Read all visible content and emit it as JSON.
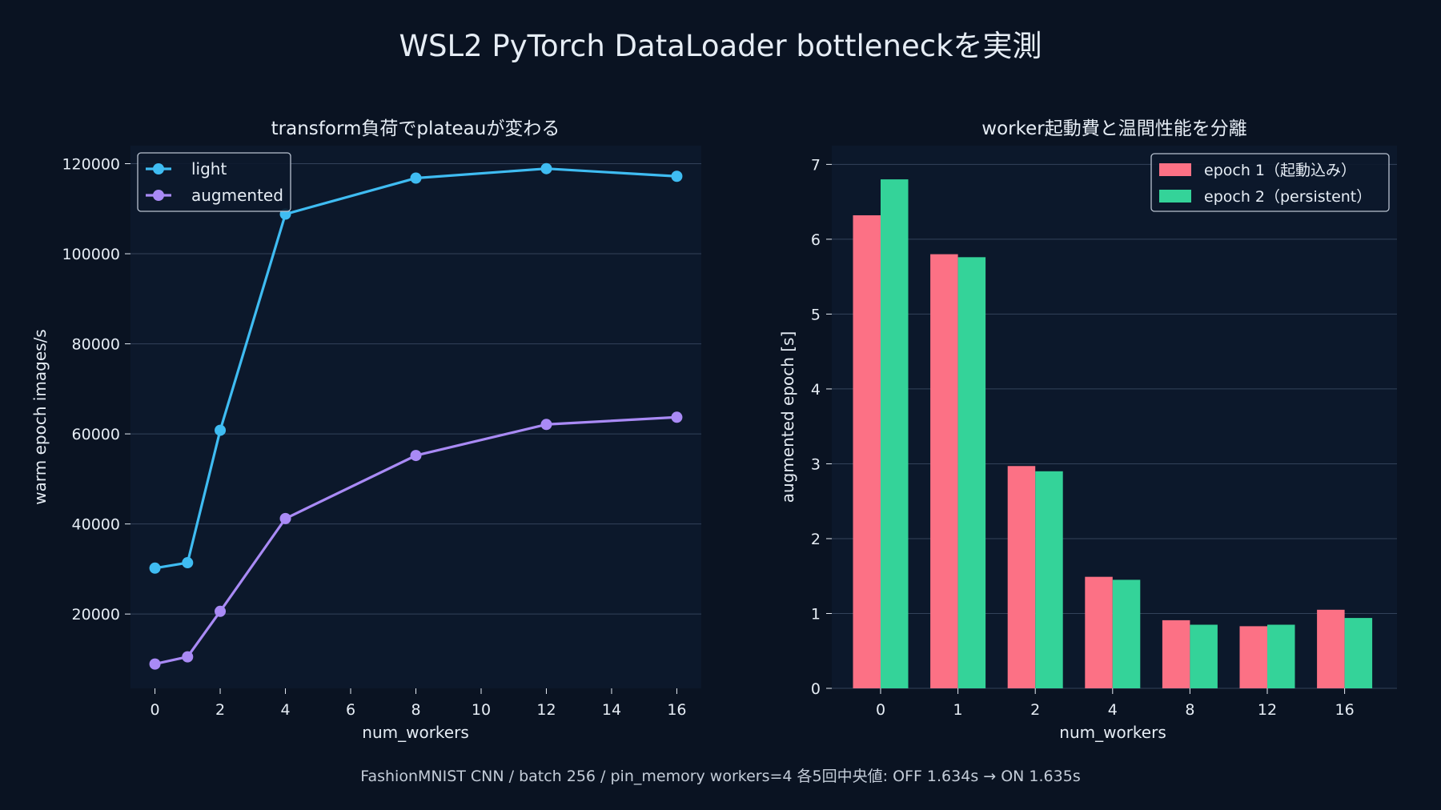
{
  "figure": {
    "title": "WSL2 PyTorch DataLoader bottleneckを実測",
    "footnote": "FashionMNIST CNN / batch 256 / pin_memory workers=4 各5回中央値: OFF 1.634s → ON 1.635s",
    "colors": {
      "background": "#0a1322",
      "panel": "#0c182b",
      "grid": "#33425a",
      "text": "#e6edf5"
    }
  },
  "chart_data": [
    {
      "type": "line",
      "title": "transform負荷でplateauが変わる",
      "xlabel": "num_workers",
      "ylabel": "warm epoch images/s",
      "xlim": [
        -0.75,
        16.75
      ],
      "ylim": [
        3500,
        124000
      ],
      "xticks": [
        0,
        2,
        4,
        6,
        8,
        10,
        12,
        14,
        16
      ],
      "yticks": [
        20000,
        40000,
        60000,
        80000,
        100000,
        120000
      ],
      "grid": "horizontal",
      "legend_position": "top-left",
      "x": [
        0,
        1,
        2,
        4,
        8,
        12,
        16
      ],
      "series": [
        {
          "name": "light",
          "color": "#3fbcf2",
          "values": [
            30200,
            31400,
            60800,
            108800,
            116800,
            118900,
            117200
          ]
        },
        {
          "name": "augmented",
          "color": "#a98af5",
          "values": [
            8900,
            10500,
            20600,
            41200,
            55200,
            62100,
            63700
          ]
        }
      ]
    },
    {
      "type": "bar",
      "title": "worker起動費と温間性能を分離",
      "xlabel": "num_workers",
      "ylabel": "augmented epoch [s]",
      "ylim": [
        0,
        7.25
      ],
      "yticks": [
        0,
        1,
        2,
        3,
        4,
        5,
        6,
        7
      ],
      "grid": "horizontal",
      "legend_position": "top-right",
      "categories": [
        "0",
        "1",
        "2",
        "4",
        "8",
        "12",
        "16"
      ],
      "series": [
        {
          "name": "epoch 1（起動込み）",
          "color": "#fc7185",
          "values": [
            6.32,
            5.8,
            2.97,
            1.49,
            0.91,
            0.83,
            1.05
          ]
        },
        {
          "name": "epoch 2（persistent）",
          "color": "#34d399",
          "values": [
            6.8,
            5.76,
            2.9,
            1.45,
            0.85,
            0.85,
            0.94
          ]
        }
      ]
    }
  ]
}
